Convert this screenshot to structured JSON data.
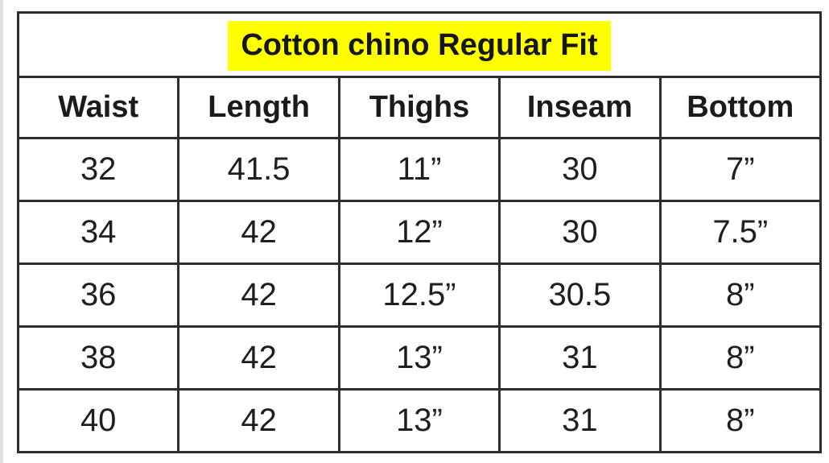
{
  "page": {
    "background_color": "#ffffff",
    "left_edge_color": "#dcdee0"
  },
  "table": {
    "title": "Cotton chino Regular Fit",
    "title_highlight_color": "#ffff00",
    "border_color": "#2e2e2e",
    "text_color": "#1b1b1b"
  },
  "chart_data": {
    "type": "table",
    "title": "Cotton chino Regular Fit",
    "columns": [
      "Waist",
      "Length",
      "Thighs",
      "Inseam",
      "Bottom"
    ],
    "rows": [
      [
        "32",
        "41.5",
        "11”",
        "30",
        "7”"
      ],
      [
        "34",
        "42",
        "12”",
        "30",
        "7.5”"
      ],
      [
        "36",
        "42",
        "12.5”",
        "30.5",
        "8”"
      ],
      [
        "38",
        "42",
        "13”",
        "31",
        "8”"
      ],
      [
        "40",
        "42",
        "13”",
        "31",
        "8”"
      ]
    ]
  }
}
